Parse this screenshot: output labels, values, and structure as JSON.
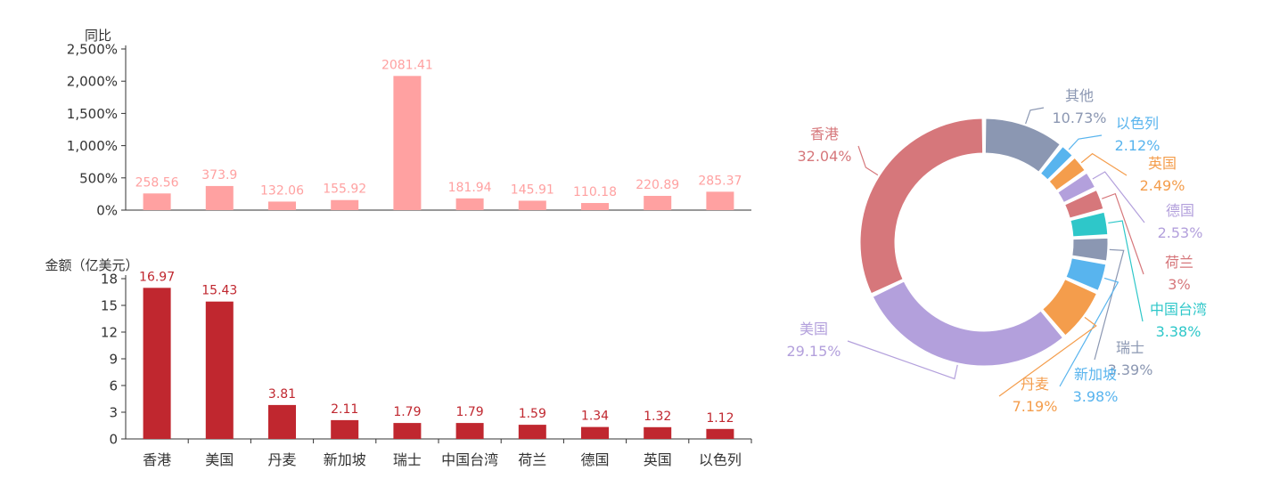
{
  "chart_data": [
    {
      "type": "bar",
      "ylabel": "同比",
      "categories": [
        "香港",
        "美国",
        "丹麦",
        "新加坡",
        "瑞士",
        "中国台湾",
        "荷兰",
        "德国",
        "英国",
        "以色列"
      ],
      "values": [
        258.56,
        373.9,
        132.06,
        155.92,
        2081.41,
        181.94,
        145.91,
        110.18,
        220.89,
        285.37
      ],
      "value_labels": [
        "258.56",
        "373.9",
        "132.06",
        "155.92",
        "2081.41",
        "181.94",
        "145.91",
        "110.18",
        "220.89",
        "285.37"
      ],
      "yticks": [
        "0%",
        "500%",
        "1,000%",
        "1,500%",
        "2,000%",
        "2,500%"
      ],
      "ylim": [
        0,
        2500
      ],
      "grid": false,
      "color": "#ffa1a1"
    },
    {
      "type": "bar",
      "ylabel": "金额（亿美元）",
      "categories": [
        "香港",
        "美国",
        "丹麦",
        "新加坡",
        "瑞士",
        "中国台湾",
        "荷兰",
        "德国",
        "英国",
        "以色列"
      ],
      "values": [
        16.97,
        15.43,
        3.81,
        2.11,
        1.79,
        1.79,
        1.59,
        1.34,
        1.32,
        1.12
      ],
      "value_labels": [
        "16.97",
        "15.43",
        "3.81",
        "2.11",
        "1.79",
        "1.79",
        "1.59",
        "1.34",
        "1.32",
        "1.12"
      ],
      "yticks": [
        "0",
        "3",
        "6",
        "9",
        "12",
        "15",
        "18"
      ],
      "ylim": [
        0,
        18
      ],
      "grid": false,
      "color": "#c0272f"
    },
    {
      "type": "pie",
      "variant": "donut",
      "legend": "none",
      "slices": [
        {
          "label": "香港",
          "value": 32.04,
          "display": "32.04%",
          "color": "#d6777b"
        },
        {
          "label": "美国",
          "value": 29.15,
          "display": "29.15%",
          "color": "#b3a0dc"
        },
        {
          "label": "丹麦",
          "value": 7.19,
          "display": "7.19%",
          "color": "#f49d4c"
        },
        {
          "label": "新加坡",
          "value": 3.98,
          "display": "3.98%",
          "color": "#58b4ee"
        },
        {
          "label": "瑞士",
          "value": 3.39,
          "display": "3.39%",
          "color": "#8b97b2"
        },
        {
          "label": "中国台湾",
          "value": 3.38,
          "display": "3.38%",
          "color": "#2ec7c9"
        },
        {
          "label": "荷兰",
          "value": 3.0,
          "display": "3%",
          "color": "#d6777b"
        },
        {
          "label": "德国",
          "value": 2.53,
          "display": "2.53%",
          "color": "#b3a0dc"
        },
        {
          "label": "英国",
          "value": 2.49,
          "display": "2.49%",
          "color": "#f49d4c"
        },
        {
          "label": "以色列",
          "value": 2.12,
          "display": "2.12%",
          "color": "#58b4ee"
        },
        {
          "label": "其他",
          "value": 10.73,
          "display": "10.73%",
          "color": "#8b97b2"
        }
      ]
    }
  ]
}
